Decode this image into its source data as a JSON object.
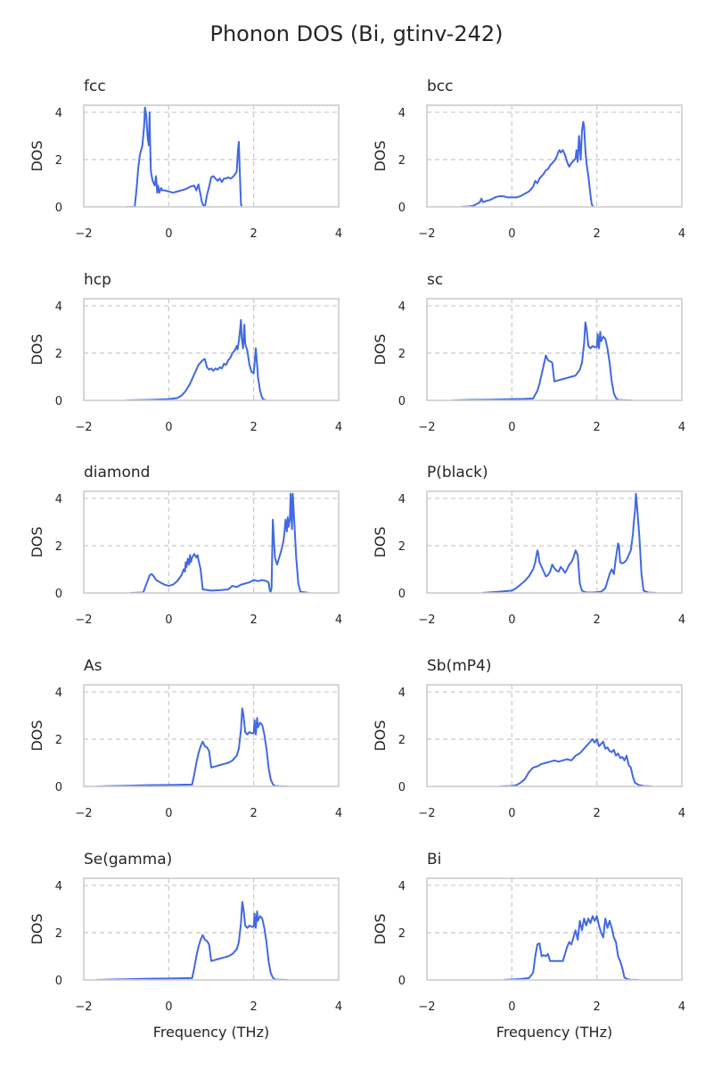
{
  "figure_title": "Phonon DOS (Bi, gtinv-242)",
  "colors": {
    "line": "#4169e1",
    "grid": "#c8c8c8",
    "frame": "#cccccc",
    "text": "#262626"
  },
  "chart_data": [
    {
      "type": "line",
      "title": "fcc",
      "xlabel": "",
      "ylabel": "DOS",
      "xlim": [
        -2,
        4
      ],
      "ylim": [
        0,
        4.3
      ],
      "xticks": [
        -2,
        0,
        2,
        4
      ],
      "xtick_labels": [
        "−2",
        "0",
        "2",
        "4"
      ],
      "yticks": [
        0,
        2,
        4
      ],
      "ytick_labels": [
        "0",
        "2",
        "4"
      ],
      "x": [
        -1.0,
        -0.8,
        -0.75,
        -0.72,
        -0.68,
        -0.65,
        -0.62,
        -0.58,
        -0.56,
        -0.53,
        -0.5,
        -0.47,
        -0.45,
        -0.44,
        -0.42,
        -0.38,
        -0.33,
        -0.3,
        -0.27,
        -0.25,
        -0.22,
        -0.18,
        -0.15,
        -0.1,
        0.0,
        0.1,
        0.2,
        0.3,
        0.4,
        0.5,
        0.6,
        0.65,
        0.7,
        0.75,
        0.78,
        0.82,
        0.85,
        0.9,
        0.95,
        1.0,
        1.05,
        1.1,
        1.15,
        1.2,
        1.25,
        1.3,
        1.35,
        1.4,
        1.45,
        1.5,
        1.55,
        1.6,
        1.63,
        1.65,
        1.67,
        1.7,
        1.72
      ],
      "y": [
        0,
        0,
        0.9,
        1.6,
        2.2,
        2.4,
        2.6,
        3.4,
        4.2,
        3.9,
        3.0,
        2.6,
        4.0,
        2.8,
        1.5,
        1.1,
        0.9,
        1.3,
        0.6,
        0.9,
        0.6,
        0.8,
        0.7,
        0.7,
        0.65,
        0.6,
        0.65,
        0.7,
        0.75,
        0.85,
        0.9,
        0.7,
        0.95,
        0.5,
        0.2,
        0.05,
        0,
        0.5,
        0.85,
        1.25,
        1.3,
        1.2,
        1.1,
        1.2,
        1.05,
        1.2,
        1.2,
        1.25,
        1.2,
        1.25,
        1.35,
        1.5,
        2.4,
        2.75,
        1.6,
        0.1,
        0
      ]
    },
    {
      "type": "line",
      "title": "bcc",
      "xlabel": "",
      "ylabel": "DOS",
      "xlim": [
        -2,
        4
      ],
      "ylim": [
        0,
        4.3
      ],
      "xticks": [
        -2,
        0,
        2,
        4
      ],
      "xtick_labels": [
        "−2",
        "0",
        "2",
        "4"
      ],
      "yticks": [
        0,
        2,
        4
      ],
      "ytick_labels": [
        "0",
        "2",
        "4"
      ],
      "x": [
        -1.2,
        -1.0,
        -0.9,
        -0.8,
        -0.75,
        -0.72,
        -0.68,
        -0.6,
        -0.5,
        -0.4,
        -0.3,
        -0.2,
        -0.1,
        0.0,
        0.1,
        0.2,
        0.3,
        0.4,
        0.5,
        0.55,
        0.6,
        0.65,
        0.7,
        0.75,
        0.8,
        0.85,
        0.9,
        0.95,
        1.0,
        1.05,
        1.1,
        1.12,
        1.15,
        1.2,
        1.25,
        1.3,
        1.35,
        1.4,
        1.45,
        1.5,
        1.52,
        1.55,
        1.58,
        1.62,
        1.65,
        1.68,
        1.7,
        1.73,
        1.76,
        1.8,
        1.85,
        1.88,
        1.92
      ],
      "y": [
        0,
        0.02,
        0.05,
        0.15,
        0.2,
        0.35,
        0.2,
        0.25,
        0.3,
        0.4,
        0.45,
        0.45,
        0.4,
        0.4,
        0.4,
        0.45,
        0.55,
        0.65,
        0.85,
        1.1,
        1.0,
        1.2,
        1.3,
        1.4,
        1.55,
        1.6,
        1.75,
        1.85,
        1.95,
        2.1,
        2.35,
        2.4,
        2.3,
        2.4,
        2.2,
        1.9,
        1.7,
        1.85,
        1.95,
        2.05,
        2.4,
        1.9,
        3.0,
        2.0,
        3.2,
        3.6,
        3.4,
        2.4,
        1.8,
        1.3,
        0.5,
        0.1,
        0
      ]
    },
    {
      "type": "line",
      "title": "hcp",
      "xlabel": "",
      "ylabel": "DOS",
      "xlim": [
        -2,
        4
      ],
      "ylim": [
        0,
        4.3
      ],
      "xticks": [
        -2,
        0,
        2,
        4
      ],
      "xtick_labels": [
        "−2",
        "0",
        "2",
        "4"
      ],
      "yticks": [
        0,
        2,
        4
      ],
      "ytick_labels": [
        "0",
        "2",
        "4"
      ],
      "x": [
        -1.0,
        -0.5,
        0.0,
        0.2,
        0.3,
        0.4,
        0.5,
        0.55,
        0.6,
        0.65,
        0.7,
        0.75,
        0.8,
        0.85,
        0.9,
        0.95,
        1.0,
        1.05,
        1.1,
        1.15,
        1.2,
        1.25,
        1.3,
        1.35,
        1.4,
        1.45,
        1.5,
        1.55,
        1.6,
        1.62,
        1.65,
        1.68,
        1.7,
        1.72,
        1.75,
        1.78,
        1.8,
        1.85,
        1.9,
        1.95,
        2.0,
        2.05,
        2.08,
        2.1,
        2.15,
        2.2,
        2.25,
        2.3
      ],
      "y": [
        0,
        0.02,
        0.05,
        0.1,
        0.2,
        0.4,
        0.7,
        0.9,
        1.1,
        1.3,
        1.5,
        1.6,
        1.7,
        1.75,
        1.4,
        1.3,
        1.35,
        1.25,
        1.35,
        1.3,
        1.4,
        1.35,
        1.55,
        1.5,
        1.7,
        1.8,
        2.0,
        2.1,
        2.3,
        2.15,
        2.5,
        3.0,
        3.4,
        2.6,
        2.2,
        3.2,
        2.4,
        2.1,
        1.5,
        1.2,
        1.15,
        2.2,
        1.5,
        1.0,
        0.4,
        0.1,
        0.02,
        0
      ]
    },
    {
      "type": "line",
      "title": "sc",
      "xlabel": "",
      "ylabel": "DOS",
      "xlim": [
        -2,
        4
      ],
      "ylim": [
        0,
        4.3
      ],
      "xticks": [
        -2,
        0,
        2,
        4
      ],
      "xtick_labels": [
        "−2",
        "0",
        "2",
        "4"
      ],
      "yticks": [
        0,
        2,
        4
      ],
      "ytick_labels": [
        "0",
        "2",
        "4"
      ],
      "x": [
        -1.4,
        -1.0,
        -0.5,
        0.0,
        0.3,
        0.5,
        0.6,
        0.65,
        0.7,
        0.75,
        0.8,
        0.85,
        0.9,
        0.95,
        1.0,
        1.1,
        1.2,
        1.3,
        1.4,
        1.5,
        1.6,
        1.65,
        1.7,
        1.73,
        1.76,
        1.8,
        1.85,
        1.9,
        1.95,
        2.0,
        2.02,
        2.05,
        2.08,
        2.1,
        2.15,
        2.2,
        2.25,
        2.3,
        2.35,
        2.4,
        2.45,
        2.5,
        2.6,
        2.8
      ],
      "y": [
        0,
        0.02,
        0.03,
        0.05,
        0.06,
        0.08,
        0.4,
        0.7,
        1.1,
        1.5,
        1.9,
        1.7,
        1.65,
        1.6,
        0.8,
        0.85,
        0.9,
        0.95,
        1.0,
        1.05,
        1.3,
        1.6,
        2.4,
        3.3,
        3.0,
        2.3,
        2.2,
        2.3,
        2.25,
        2.25,
        2.8,
        2.2,
        2.9,
        2.5,
        2.7,
        2.6,
        2.2,
        1.6,
        0.8,
        0.3,
        0.1,
        0.02,
        0.01,
        0
      ]
    },
    {
      "type": "line",
      "title": "diamond",
      "xlabel": "",
      "ylabel": "DOS",
      "xlim": [
        -2,
        4
      ],
      "ylim": [
        0,
        4.3
      ],
      "xticks": [
        -2,
        0,
        2,
        4
      ],
      "xtick_labels": [
        "−2",
        "0",
        "2",
        "4"
      ],
      "yticks": [
        0,
        2,
        4
      ],
      "ytick_labels": [
        "0",
        "2",
        "4"
      ],
      "x": [
        -0.9,
        -0.6,
        -0.5,
        -0.45,
        -0.4,
        -0.35,
        -0.3,
        -0.2,
        -0.1,
        0.0,
        0.1,
        0.2,
        0.3,
        0.35,
        0.38,
        0.4,
        0.42,
        0.45,
        0.48,
        0.5,
        0.52,
        0.55,
        0.6,
        0.65,
        0.68,
        0.7,
        0.75,
        0.8,
        1.0,
        1.2,
        1.4,
        1.5,
        1.6,
        1.7,
        1.8,
        1.9,
        2.0,
        2.1,
        2.2,
        2.3,
        2.35,
        2.38,
        2.4,
        2.42,
        2.45,
        2.5,
        2.55,
        2.6,
        2.65,
        2.7,
        2.72,
        2.75,
        2.78,
        2.8,
        2.82,
        2.85,
        2.87,
        2.9,
        2.92,
        2.95,
        3.0,
        3.05,
        3.1,
        3.3
      ],
      "y": [
        0,
        0.02,
        0.5,
        0.75,
        0.8,
        0.7,
        0.55,
        0.45,
        0.35,
        0.3,
        0.35,
        0.5,
        0.75,
        1.0,
        0.9,
        1.3,
        1.1,
        1.45,
        1.2,
        1.6,
        1.3,
        1.5,
        1.65,
        1.5,
        1.6,
        1.4,
        1.0,
        0.15,
        0.1,
        0.12,
        0.15,
        0.3,
        0.25,
        0.35,
        0.4,
        0.45,
        0.55,
        0.5,
        0.55,
        0.5,
        0.45,
        0.1,
        0.05,
        0.2,
        3.1,
        1.5,
        1.2,
        1.5,
        1.8,
        2.2,
        2.5,
        3.1,
        2.6,
        3.2,
        2.8,
        3.1,
        4.2,
        2.7,
        4.2,
        3.2,
        1.5,
        0.4,
        0.05,
        0
      ]
    },
    {
      "type": "line",
      "title": "P(black)",
      "xlabel": "",
      "ylabel": "DOS",
      "xlim": [
        -2,
        4
      ],
      "ylim": [
        0,
        4.3
      ],
      "xticks": [
        -2,
        0,
        2,
        4
      ],
      "xtick_labels": [
        "−2",
        "0",
        "2",
        "4"
      ],
      "yticks": [
        0,
        2,
        4
      ],
      "ytick_labels": [
        "0",
        "2",
        "4"
      ],
      "x": [
        -0.7,
        -0.3,
        0.0,
        0.1,
        0.2,
        0.3,
        0.4,
        0.5,
        0.55,
        0.6,
        0.62,
        0.65,
        0.7,
        0.75,
        0.8,
        0.85,
        0.9,
        0.95,
        1.0,
        1.05,
        1.1,
        1.15,
        1.2,
        1.25,
        1.3,
        1.35,
        1.4,
        1.45,
        1.5,
        1.55,
        1.6,
        1.65,
        1.7,
        1.75,
        1.8,
        1.9,
        2.0,
        2.1,
        2.2,
        2.25,
        2.3,
        2.35,
        2.4,
        2.45,
        2.5,
        2.52,
        2.55,
        2.6,
        2.65,
        2.7,
        2.75,
        2.8,
        2.85,
        2.87,
        2.9,
        2.92,
        2.95,
        3.0,
        3.02,
        3.05,
        3.1,
        3.2,
        3.4
      ],
      "y": [
        0,
        0.05,
        0.1,
        0.2,
        0.35,
        0.5,
        0.7,
        1.0,
        1.3,
        1.8,
        1.7,
        1.3,
        1.1,
        0.9,
        0.7,
        0.75,
        0.9,
        1.2,
        1.05,
        0.95,
        0.9,
        1.1,
        1.0,
        0.85,
        1.0,
        1.2,
        1.3,
        1.5,
        1.8,
        1.6,
        0.4,
        0.1,
        0.05,
        0.02,
        0.02,
        0.02,
        0.03,
        0.05,
        0.2,
        0.5,
        0.8,
        1.0,
        0.8,
        1.5,
        2.1,
        2.0,
        1.3,
        1.25,
        1.3,
        1.4,
        1.6,
        1.8,
        2.5,
        3.0,
        3.5,
        4.2,
        3.6,
        2.4,
        1.8,
        0.8,
        0.1,
        0.02,
        0
      ]
    },
    {
      "type": "line",
      "title": "As",
      "xlabel": "",
      "ylabel": "DOS",
      "xlim": [
        -2,
        4
      ],
      "ylim": [
        0,
        4.3
      ],
      "xticks": [
        -2,
        0,
        2,
        4
      ],
      "xtick_labels": [
        "−2",
        "0",
        "2",
        "4"
      ],
      "yticks": [
        0,
        2,
        4
      ],
      "ytick_labels": [
        "0",
        "2",
        "4"
      ],
      "x": [
        -1.7,
        -1.0,
        -0.5,
        0.0,
        0.3,
        0.55,
        0.6,
        0.65,
        0.7,
        0.75,
        0.8,
        0.85,
        0.9,
        0.95,
        1.0,
        1.1,
        1.2,
        1.3,
        1.4,
        1.5,
        1.6,
        1.65,
        1.7,
        1.73,
        1.76,
        1.8,
        1.85,
        1.9,
        1.95,
        2.0,
        2.02,
        2.05,
        2.08,
        2.1,
        2.15,
        2.2,
        2.25,
        2.3,
        2.35,
        2.4,
        2.45,
        2.5,
        2.6,
        2.8
      ],
      "y": [
        0,
        0.03,
        0.05,
        0.06,
        0.07,
        0.08,
        0.5,
        1.0,
        1.4,
        1.7,
        1.9,
        1.7,
        1.65,
        1.5,
        0.8,
        0.85,
        0.9,
        0.95,
        1.0,
        1.1,
        1.3,
        1.6,
        2.4,
        3.3,
        3.0,
        2.3,
        2.2,
        2.3,
        2.25,
        2.25,
        2.8,
        2.2,
        2.9,
        2.5,
        2.7,
        2.6,
        2.2,
        1.6,
        0.8,
        0.3,
        0.1,
        0.02,
        0.01,
        0
      ]
    },
    {
      "type": "line",
      "title": "Sb(mP4)",
      "xlabel": "",
      "ylabel": "DOS",
      "xlim": [
        -2,
        4
      ],
      "ylim": [
        0,
        4.3
      ],
      "xticks": [
        -2,
        0,
        2,
        4
      ],
      "xtick_labels": [
        "−2",
        "0",
        "2",
        "4"
      ],
      "yticks": [
        0,
        2,
        4
      ],
      "ytick_labels": [
        "0",
        "2",
        "4"
      ],
      "x": [
        -0.3,
        0.0,
        0.1,
        0.2,
        0.3,
        0.4,
        0.5,
        0.6,
        0.7,
        0.8,
        0.9,
        1.0,
        1.1,
        1.2,
        1.3,
        1.4,
        1.5,
        1.6,
        1.7,
        1.8,
        1.85,
        1.9,
        1.95,
        2.0,
        2.05,
        2.1,
        2.15,
        2.2,
        2.25,
        2.3,
        2.35,
        2.4,
        2.45,
        2.5,
        2.55,
        2.6,
        2.65,
        2.7,
        2.75,
        2.8,
        2.85,
        2.9,
        3.0,
        3.1,
        3.3
      ],
      "y": [
        0,
        0.02,
        0.05,
        0.15,
        0.3,
        0.6,
        0.8,
        0.85,
        0.95,
        1.0,
        1.05,
        1.1,
        1.05,
        1.1,
        1.15,
        1.1,
        1.3,
        1.4,
        1.6,
        1.8,
        1.9,
        2.0,
        1.85,
        2.0,
        1.7,
        1.8,
        1.9,
        1.6,
        1.65,
        1.5,
        1.45,
        1.55,
        1.3,
        1.4,
        1.2,
        1.25,
        1.1,
        1.3,
        0.9,
        0.8,
        0.4,
        0.15,
        0.05,
        0.02,
        0
      ]
    },
    {
      "type": "line",
      "title": "Se(gamma)",
      "xlabel": "Frequency (THz)",
      "ylabel": "DOS",
      "xlim": [
        -2,
        4
      ],
      "ylim": [
        0,
        4.3
      ],
      "xticks": [
        -2,
        0,
        2,
        4
      ],
      "xtick_labels": [
        "−2",
        "0",
        "2",
        "4"
      ],
      "yticks": [
        0,
        2,
        4
      ],
      "ytick_labels": [
        "0",
        "2",
        "4"
      ],
      "x": [
        -1.7,
        -1.0,
        -0.5,
        0.0,
        0.3,
        0.55,
        0.6,
        0.65,
        0.7,
        0.75,
        0.8,
        0.85,
        0.9,
        0.95,
        1.0,
        1.1,
        1.2,
        1.3,
        1.4,
        1.5,
        1.6,
        1.65,
        1.7,
        1.73,
        1.76,
        1.8,
        1.85,
        1.9,
        1.95,
        2.0,
        2.02,
        2.05,
        2.08,
        2.1,
        2.15,
        2.2,
        2.25,
        2.3,
        2.35,
        2.4,
        2.45,
        2.5,
        2.6,
        2.8
      ],
      "y": [
        0,
        0.03,
        0.05,
        0.06,
        0.07,
        0.08,
        0.5,
        1.0,
        1.4,
        1.7,
        1.9,
        1.7,
        1.65,
        1.5,
        0.8,
        0.85,
        0.9,
        0.95,
        1.0,
        1.1,
        1.3,
        1.6,
        2.4,
        3.3,
        3.0,
        2.3,
        2.2,
        2.3,
        2.25,
        2.25,
        2.8,
        2.2,
        2.9,
        2.5,
        2.7,
        2.6,
        2.2,
        1.6,
        0.8,
        0.3,
        0.1,
        0.02,
        0.01,
        0
      ]
    },
    {
      "type": "line",
      "title": "Bi",
      "xlabel": "Frequency (THz)",
      "ylabel": "DOS",
      "xlim": [
        -2,
        4
      ],
      "ylim": [
        0,
        4.3
      ],
      "xticks": [
        -2,
        0,
        2,
        4
      ],
      "xtick_labels": [
        "−2",
        "0",
        "2",
        "4"
      ],
      "yticks": [
        0,
        2,
        4
      ],
      "ytick_labels": [
        "0",
        "2",
        "4"
      ],
      "x": [
        -0.2,
        0.0,
        0.2,
        0.4,
        0.5,
        0.55,
        0.6,
        0.65,
        0.7,
        0.75,
        0.8,
        0.85,
        0.9,
        0.95,
        1.0,
        1.1,
        1.2,
        1.3,
        1.35,
        1.4,
        1.5,
        1.55,
        1.6,
        1.65,
        1.7,
        1.75,
        1.8,
        1.85,
        1.9,
        1.95,
        2.0,
        2.05,
        2.1,
        2.15,
        2.2,
        2.25,
        2.3,
        2.35,
        2.4,
        2.45,
        2.5,
        2.55,
        2.6,
        2.65,
        2.7,
        2.75,
        2.8,
        3.0
      ],
      "y": [
        0,
        0.02,
        0.04,
        0.08,
        0.3,
        1.0,
        1.5,
        1.55,
        1.0,
        1.05,
        1.0,
        1.1,
        0.8,
        0.8,
        0.8,
        0.8,
        0.8,
        1.4,
        1.6,
        1.5,
        2.1,
        1.7,
        2.5,
        2.1,
        2.6,
        2.3,
        2.6,
        2.4,
        2.7,
        2.5,
        2.7,
        2.3,
        2.0,
        1.8,
        2.6,
        2.2,
        2.5,
        2.2,
        1.8,
        1.6,
        1.0,
        0.8,
        0.5,
        0.1,
        0.05,
        0.02,
        0.01,
        0
      ]
    }
  ]
}
